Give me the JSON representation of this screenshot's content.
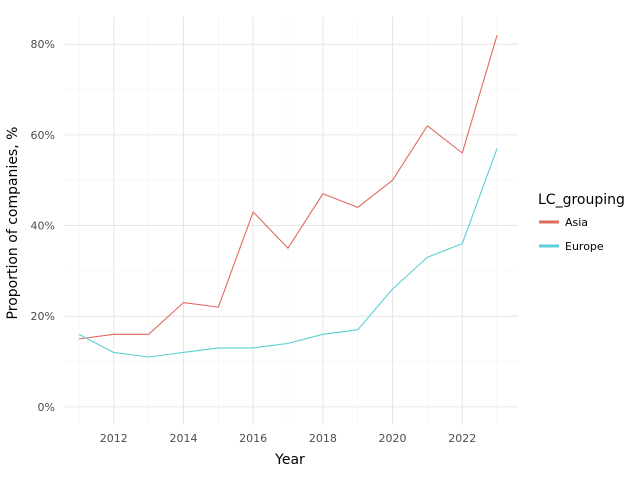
{
  "chart_data": {
    "type": "line",
    "xlabel": "Year",
    "ylabel": "Proportion of companies, %",
    "x": [
      2011,
      2012,
      2013,
      2014,
      2015,
      2016,
      2017,
      2018,
      2019,
      2020,
      2021,
      2022,
      2023
    ],
    "series": [
      {
        "name": "Asia",
        "color": "#e06a5f",
        "values": [
          15,
          16,
          16,
          23,
          22,
          43,
          35,
          47,
          44,
          50,
          62,
          56,
          82
        ]
      },
      {
        "name": "Europe",
        "color": "#5bd0d6",
        "values": [
          16,
          12,
          11,
          12,
          13,
          13,
          14,
          16,
          17,
          26,
          33,
          36,
          57
        ]
      }
    ],
    "xlim": [
      2010.6,
      2023.6
    ],
    "ylim": [
      -4,
      86
    ],
    "x_ticks": [
      2012,
      2014,
      2016,
      2018,
      2020,
      2022
    ],
    "x_tick_labels": [
      "2012",
      "2014",
      "2016",
      "2018",
      "2020",
      "2022"
    ],
    "y_ticks": [
      0,
      20,
      40,
      60,
      80
    ],
    "y_tick_labels": [
      "0%",
      "20%",
      "40%",
      "60%",
      "80%"
    ],
    "grid": true,
    "legend": {
      "title": "LC_grouping",
      "position": "right"
    }
  }
}
